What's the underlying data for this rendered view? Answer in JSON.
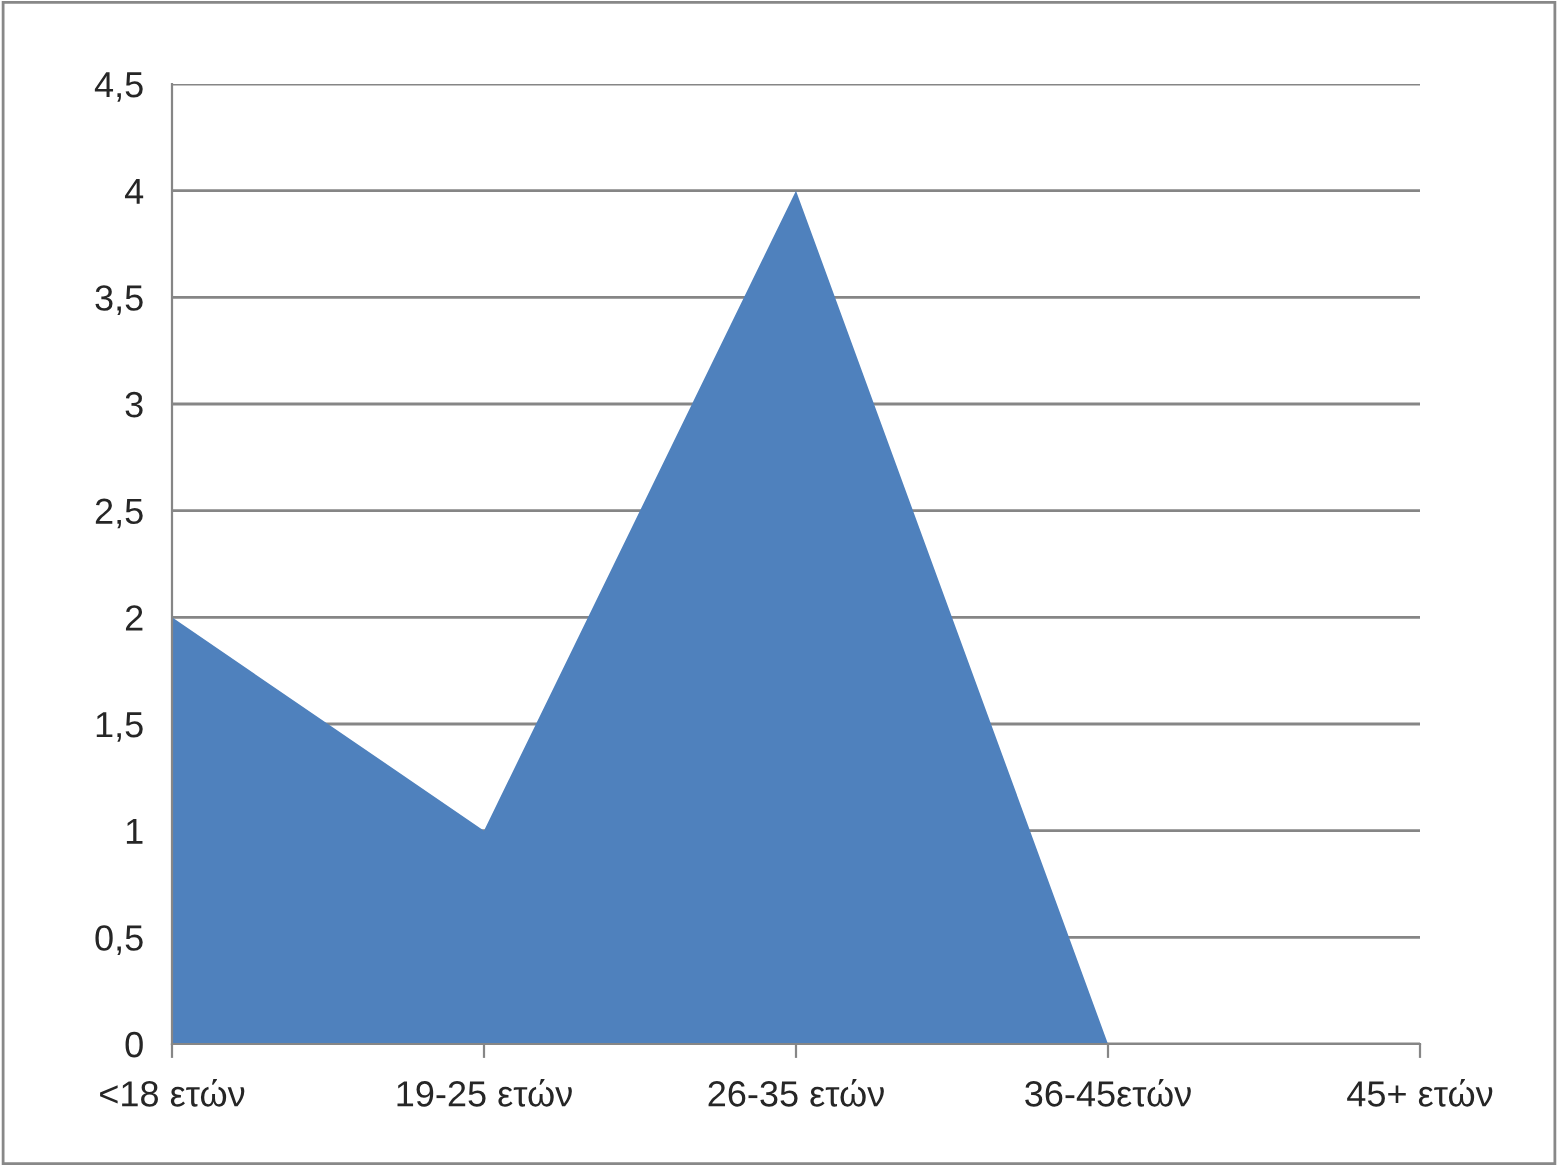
{
  "chart_data": {
    "type": "area",
    "categories": [
      "<18 ετών",
      "19-25 ετών",
      "26-35 ετών",
      "36-45ετών",
      "45+ ετών"
    ],
    "series": [
      {
        "color": "#4f81bd",
        "values": [
          2,
          1,
          4,
          0,
          0
        ]
      }
    ],
    "ylim": [
      0,
      4.5
    ],
    "yticks": [
      0,
      {
        "value": 0.5,
        "label": "0,5"
      },
      1,
      {
        "value": 1.5,
        "label": "1,5"
      },
      2,
      {
        "value": 2.5,
        "label": "2,5"
      },
      3,
      {
        "value": 3.5,
        "label": "3,5"
      },
      4,
      {
        "value": 4.5,
        "label": "4,5"
      }
    ],
    "grid": "y"
  }
}
